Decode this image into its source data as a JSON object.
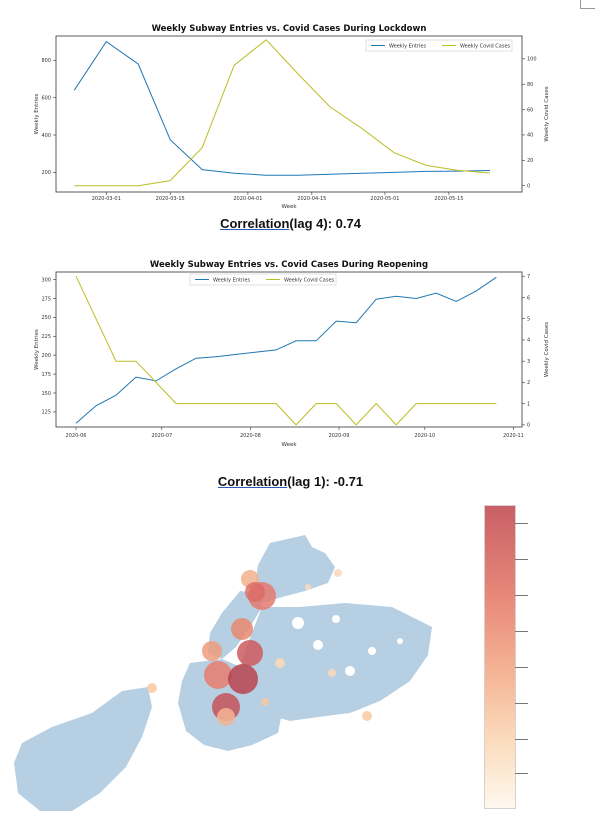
{
  "colors": {
    "entries": "#1f77b4",
    "cases": "#bcbd22"
  },
  "charts": [
    {
      "title": "Weekly Subway Entries vs. Covid Cases During Lockdown",
      "xlabel": "Week",
      "ylabel_left": "Weekly Entries",
      "ylabel_right": "Weekly Covid Cases",
      "legend": [
        "Weekly Entries",
        "Weekly Covid Cases"
      ],
      "legend_position": "top-right",
      "x_ticks": [
        "2020-03-01",
        "2020-03-15",
        "2020-04-01",
        "2020-04-15",
        "2020-05-01",
        "2020-05-15"
      ],
      "y_left_ticks": [
        "200",
        "400",
        "600",
        "800"
      ],
      "y_right_ticks": [
        "0",
        "20",
        "40",
        "60",
        "80",
        "100"
      ]
    },
    {
      "title": "Weekly Subway Entries vs. Covid Cases During Reopening",
      "xlabel": "Week",
      "ylabel_left": "Weekly Entries",
      "ylabel_right": "Weekly Covid Cases",
      "legend": [
        "Weekly Entries",
        "Weekly Covid Cases"
      ],
      "legend_position": "top-center",
      "x_ticks": [
        "2020-06",
        "2020-07",
        "2020-08",
        "2020-09",
        "2020-10",
        "2020-11"
      ],
      "y_left_ticks": [
        "125",
        "150",
        "175",
        "200",
        "225",
        "250",
        "275",
        "300"
      ],
      "y_right_ticks": [
        "0",
        "1",
        "2",
        "3",
        "4",
        "5",
        "6",
        "7"
      ]
    }
  ],
  "correlations": [
    {
      "label": "Correlation",
      "detail": "(lag 4): 0.74"
    },
    {
      "label": "Correlation",
      "detail": "(lag 1): -0.71"
    }
  ],
  "chart_data": [
    {
      "type": "line",
      "title": "Weekly Subway Entries vs. Covid Cases During Lockdown",
      "xlabel": "Week",
      "ylabel": "Weekly Entries",
      "y2label": "Weekly Covid Cases",
      "x": [
        "2020-02-23",
        "2020-03-01",
        "2020-03-08",
        "2020-03-15",
        "2020-03-22",
        "2020-03-29",
        "2020-04-05",
        "2020-04-12",
        "2020-04-19",
        "2020-04-26",
        "2020-05-03",
        "2020-05-10",
        "2020-05-17",
        "2020-05-24"
      ],
      "xlim": [
        "2020-02-19",
        "2020-05-31"
      ],
      "ylim": [
        95,
        930
      ],
      "y2lim": [
        -5,
        118
      ],
      "grid": false,
      "legend": "top-right",
      "series": [
        {
          "name": "Weekly Entries",
          "axis": "left",
          "values": [
            640,
            900,
            780,
            375,
            215,
            195,
            185,
            185,
            190,
            195,
            200,
            205,
            207,
            210
          ]
        },
        {
          "name": "Weekly Covid Cases",
          "axis": "right",
          "values": [
            0,
            0,
            0,
            4,
            30,
            95,
            115,
            88,
            62,
            45,
            26,
            16,
            12,
            10
          ]
        }
      ]
    },
    {
      "type": "line",
      "title": "Weekly Subway Entries vs. Covid Cases During Reopening",
      "xlabel": "Week",
      "ylabel": "Weekly Entries",
      "y2label": "Weekly Covid Cases",
      "x": [
        "2020-06-01",
        "2020-06-08",
        "2020-06-15",
        "2020-06-22",
        "2020-06-29",
        "2020-07-06",
        "2020-07-13",
        "2020-07-20",
        "2020-07-27",
        "2020-08-03",
        "2020-08-10",
        "2020-08-17",
        "2020-08-24",
        "2020-08-31",
        "2020-09-07",
        "2020-09-14",
        "2020-09-21",
        "2020-09-28",
        "2020-10-05",
        "2020-10-12",
        "2020-10-19",
        "2020-10-26"
      ],
      "xlim": [
        "2020-05-25",
        "2020-11-04"
      ],
      "ylim": [
        105,
        310
      ],
      "y2lim": [
        -0.1,
        7.2
      ],
      "grid": false,
      "legend": "top-center",
      "series": [
        {
          "name": "Weekly Entries",
          "axis": "left",
          "values": [
            110,
            133,
            147,
            171,
            166,
            182,
            196,
            198,
            201,
            204,
            207,
            219,
            219,
            245,
            243,
            274,
            278,
            275,
            282,
            271,
            285,
            303
          ]
        },
        {
          "name": "Weekly Covid Cases",
          "axis": "right",
          "values": [
            7,
            5,
            3,
            3,
            2,
            1,
            1,
            1,
            1,
            1,
            1,
            0,
            1,
            1,
            0,
            1,
            0,
            1,
            1,
            1,
            1,
            1
          ]
        }
      ]
    }
  ]
}
